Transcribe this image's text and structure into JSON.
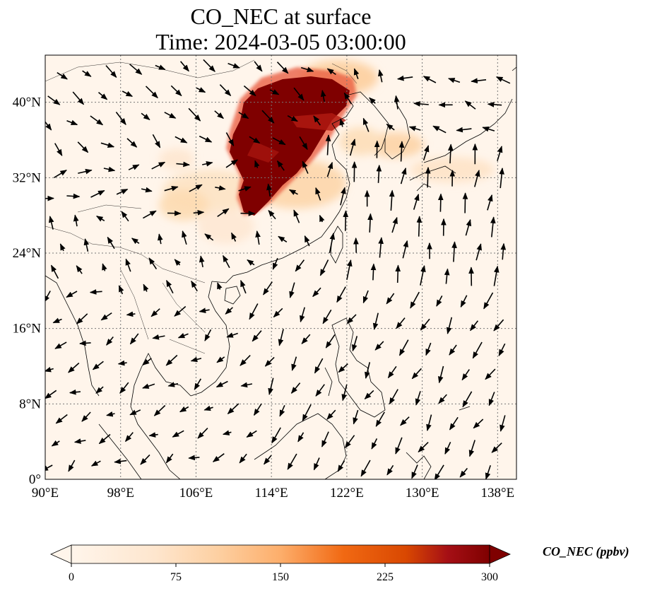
{
  "title": {
    "line1": "CO_NEC at surface",
    "line2": "Time: 2024-03-05 03:00:00"
  },
  "map": {
    "lon_range": [
      90,
      140
    ],
    "lat_range": [
      0,
      45
    ],
    "gridlines": true,
    "gridline_style": "dotted",
    "x_ticks": [
      "90°E",
      "98°E",
      "106°E",
      "114°E",
      "122°E",
      "130°E",
      "138°E"
    ],
    "x_tick_values": [
      90,
      98,
      106,
      114,
      122,
      130,
      138
    ],
    "y_ticks": [
      "0°",
      "8°N",
      "16°N",
      "24°N",
      "32°N",
      "40°N"
    ],
    "y_tick_values": [
      0,
      8,
      16,
      24,
      32,
      40
    ],
    "background_color": "#fff5eb",
    "coastline_color": "#000000"
  },
  "colorbar": {
    "label": "CO_NEC (ppbv)",
    "ticks": [
      "0",
      "75",
      "150",
      "225",
      "300"
    ],
    "tick_values": [
      0,
      75,
      150,
      225,
      300
    ],
    "range": [
      0,
      300
    ],
    "colormap": "OrRd-like",
    "colors": [
      "#fff5eb",
      "#fdd9a9",
      "#fdab67",
      "#f16a13",
      "#c3280a",
      "#7f0000"
    ],
    "extend": "both"
  },
  "plume": {
    "core_value_ppbv": 300,
    "core_center": [
      114,
      38
    ],
    "halo_value_ppbv": 40
  }
}
